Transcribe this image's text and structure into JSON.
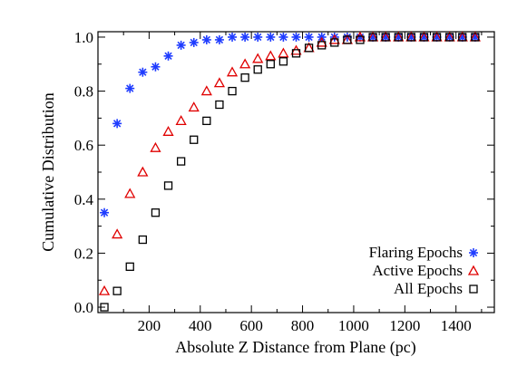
{
  "chart_data": {
    "type": "scatter",
    "xlabel": "Absolute Z Distance from Plane (pc)",
    "ylabel": "Cumulative Distribution",
    "xlim": [
      0,
      1550
    ],
    "ylim": [
      -0.02,
      1.02
    ],
    "x_ticks": [
      200,
      400,
      600,
      800,
      1000,
      1200,
      1400
    ],
    "y_ticks": [
      0.0,
      0.2,
      0.4,
      0.6,
      0.8,
      1.0
    ],
    "grid": false,
    "legend_position": "bottom-right",
    "series": [
      {
        "name": "Flaring Epochs",
        "marker": "asterisk",
        "color": "#1f3cff",
        "x": [
          25,
          75,
          125,
          175,
          225,
          275,
          325,
          375,
          425,
          475,
          525,
          575,
          625,
          675,
          725,
          775,
          825,
          875,
          925,
          975,
          1025,
          1075,
          1125,
          1175,
          1225,
          1275,
          1325,
          1375,
          1425,
          1475
        ],
        "y": [
          0.35,
          0.68,
          0.81,
          0.87,
          0.89,
          0.93,
          0.97,
          0.98,
          0.99,
          0.99,
          1.0,
          1.0,
          1.0,
          1.0,
          1.0,
          1.0,
          1.0,
          1.0,
          1.0,
          1.0,
          1.0,
          1.0,
          1.0,
          1.0,
          1.0,
          1.0,
          1.0,
          1.0,
          1.0,
          1.0
        ]
      },
      {
        "name": "Active Epochs",
        "marker": "triangle",
        "color": "#e00000",
        "x": [
          25,
          75,
          125,
          175,
          225,
          275,
          325,
          375,
          425,
          475,
          525,
          575,
          625,
          675,
          725,
          775,
          825,
          875,
          925,
          975,
          1025,
          1075,
          1125,
          1175,
          1225,
          1275,
          1325,
          1375,
          1425,
          1475
        ],
        "y": [
          0.06,
          0.27,
          0.42,
          0.5,
          0.59,
          0.65,
          0.69,
          0.74,
          0.8,
          0.83,
          0.87,
          0.9,
          0.92,
          0.93,
          0.94,
          0.95,
          0.96,
          0.98,
          0.99,
          0.99,
          1.0,
          1.0,
          1.0,
          1.0,
          1.0,
          1.0,
          1.0,
          1.0,
          1.0,
          1.0
        ]
      },
      {
        "name": "All Epochs",
        "marker": "square",
        "color": "#000000",
        "x": [
          25,
          75,
          125,
          175,
          225,
          275,
          325,
          375,
          425,
          475,
          525,
          575,
          625,
          675,
          725,
          775,
          825,
          875,
          925,
          975,
          1025,
          1075,
          1125,
          1175,
          1225,
          1275,
          1325,
          1375,
          1425,
          1475
        ],
        "y": [
          0.0,
          0.06,
          0.15,
          0.25,
          0.35,
          0.45,
          0.54,
          0.62,
          0.69,
          0.75,
          0.8,
          0.85,
          0.88,
          0.9,
          0.91,
          0.94,
          0.96,
          0.97,
          0.98,
          0.99,
          0.99,
          1.0,
          1.0,
          1.0,
          1.0,
          1.0,
          1.0,
          1.0,
          1.0,
          1.0
        ]
      }
    ]
  }
}
